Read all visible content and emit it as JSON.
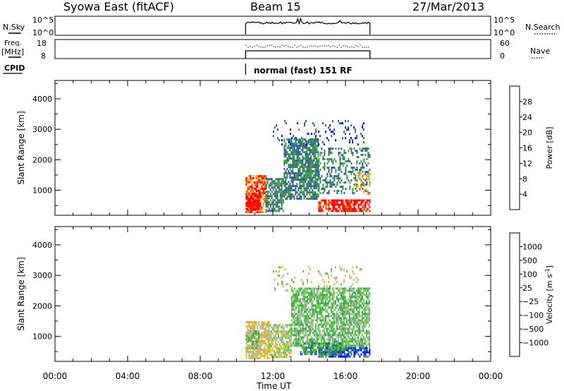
{
  "header": {
    "station": "Syowa East (fitACF)",
    "beam": "Beam 15",
    "date": "27/Mar/2013"
  },
  "top_panels": {
    "nsky_label": "N.Sky",
    "nsky_ticks": [
      "10^5",
      "10^0"
    ],
    "nsky_right_ticks": [
      "10^5",
      "10^0"
    ],
    "nsearch_label": "N.Search",
    "freq_label": "Freq.",
    "freq_unit": "[MHz]",
    "freq_ticks": [
      "18",
      "8"
    ],
    "nave_ticks": [
      "60",
      "0"
    ],
    "nave_label": "Nave",
    "cpid_label": "CPID",
    "cpid_text": "normal (fast) 151 RF",
    "active_window_ut": [
      10.5,
      17.35
    ]
  },
  "x_axis": {
    "label": "Time UT",
    "ticks": [
      "00:00",
      "04:00",
      "08:00",
      "12:00",
      "16:00",
      "20:00",
      "00:00"
    ],
    "tick_hours": [
      0,
      4,
      8,
      12,
      16,
      20,
      24
    ],
    "range_hours": [
      0,
      24
    ]
  },
  "colors": {
    "power_scale": [
      "#0000ff",
      "#2855a8",
      "#3c7850",
      "#28a83c",
      "#dcc828",
      "#f0a014",
      "#ff6400",
      "#ff0000"
    ],
    "velocity_scale": [
      "#ff0000",
      "#ff6400",
      "#f0a014",
      "#dcc828",
      "#b4b4b4",
      "#50c828",
      "#28a83c",
      "#2855a8",
      "#0000ff"
    ]
  },
  "chart_data": [
    {
      "type": "heatmap",
      "name": "power",
      "ylabel": "Slant Range [km]",
      "y_ticks": [
        1000,
        2000,
        3000,
        4000
      ],
      "ylim": [
        180,
        4600
      ],
      "xlim": [
        0,
        24
      ],
      "colorbar": {
        "label": "Power [dB]",
        "tick_labels": [
          "28",
          "24",
          "20",
          "16",
          "12",
          "8",
          "4"
        ],
        "tick_values": [
          28,
          24,
          20,
          16,
          12,
          8,
          4
        ],
        "range": [
          0,
          32
        ]
      },
      "regions": [
        {
          "t0": 10.5,
          "t1": 11.6,
          "r0": 300,
          "r1": 1500,
          "level": 24
        },
        {
          "t0": 10.5,
          "t1": 11.2,
          "r0": 400,
          "r1": 900,
          "level": 30
        },
        {
          "t0": 11.6,
          "t1": 12.6,
          "r0": 350,
          "r1": 1400,
          "level": 6
        },
        {
          "t0": 12.6,
          "t1": 14.5,
          "r0": 700,
          "r1": 2700,
          "level": 6
        },
        {
          "t0": 14.5,
          "t1": 17.3,
          "r0": 350,
          "r1": 700,
          "level": 28
        },
        {
          "t0": 14.5,
          "t1": 17.3,
          "r0": 900,
          "r1": 2400,
          "level": 6
        },
        {
          "t0": 16.5,
          "t1": 17.3,
          "r0": 900,
          "r1": 1600,
          "level": 20
        },
        {
          "t0": 12.0,
          "t1": 17.0,
          "r0": 2500,
          "r1": 3300,
          "level": 4
        }
      ]
    },
    {
      "type": "heatmap",
      "name": "velocity",
      "ylabel": "Slant Range [km]",
      "y_ticks": [
        1000,
        2000,
        3000,
        4000
      ],
      "ylim": [
        180,
        4600
      ],
      "xlim": [
        0,
        24
      ],
      "colorbar": {
        "label": "Velocity [m s",
        "label_sup": "-1",
        "label_end": "]",
        "tick_labels": [
          "1000",
          "500",
          "100",
          "25",
          "−25",
          "−100",
          "−500",
          "−1000"
        ],
        "tick_values": [
          1000,
          500,
          100,
          25,
          -25,
          -100,
          -500,
          -1000
        ]
      },
      "regions": [
        {
          "t0": 10.5,
          "t1": 11.8,
          "r0": 300,
          "r1": 1500,
          "level": 3
        },
        {
          "t0": 10.5,
          "t1": 11.2,
          "r0": 600,
          "r1": 1200,
          "level": 5
        },
        {
          "t0": 11.8,
          "t1": 13.0,
          "r0": 350,
          "r1": 1400,
          "level": 4
        },
        {
          "t0": 13.0,
          "t1": 17.3,
          "r0": 700,
          "r1": 2600,
          "level": 5
        },
        {
          "t0": 14.5,
          "t1": 17.3,
          "r0": 350,
          "r1": 650,
          "level": 7
        },
        {
          "t0": 13.5,
          "t1": 16.0,
          "r0": 400,
          "r1": 800,
          "level": 6
        },
        {
          "t0": 12.0,
          "t1": 17.0,
          "r0": 2500,
          "r1": 3300,
          "level": 4
        }
      ]
    }
  ]
}
